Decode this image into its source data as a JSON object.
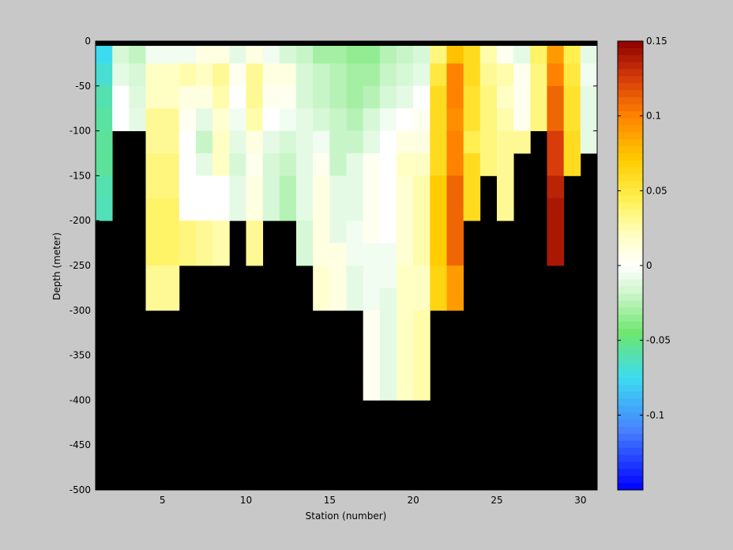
{
  "chart_data": {
    "type": "heatmap",
    "title": "",
    "xlabel": "Station (number)",
    "ylabel": "Depth (meter)",
    "xlim": [
      1,
      31
    ],
    "ylim": [
      -500,
      0
    ],
    "x_ticks": [
      5,
      10,
      15,
      20,
      25,
      30
    ],
    "x_tick_labels": [
      "5",
      "10",
      "15",
      "20",
      "25",
      "30"
    ],
    "y_ticks": [
      0,
      -50,
      -100,
      -150,
      -200,
      -250,
      -300,
      -350,
      -400,
      -450,
      -500
    ],
    "y_tick_labels": [
      "0",
      "-50",
      "-100",
      "-150",
      "-200",
      "-250",
      "-300",
      "-350",
      "-400",
      "-450",
      "-500"
    ],
    "colorbar": {
      "range": [
        -0.15,
        0.15
      ],
      "ticks": [
        0.15,
        0.1,
        0.05,
        0,
        -0.05,
        -0.1
      ],
      "tick_labels": [
        "0.15",
        "0.1",
        "0.05",
        "0",
        "-0.05",
        "-0.1"
      ]
    },
    "background_color": "#000000",
    "station_width": 1,
    "depth_bin": 25,
    "stations": [
      {
        "x": 1,
        "bottom": -200,
        "v": [
          -0.075,
          -0.068,
          -0.06,
          -0.057,
          -0.055,
          -0.055,
          -0.06,
          -0.062
        ]
      },
      {
        "x": 2,
        "bottom": -100,
        "v": [
          -0.015,
          -0.01,
          0,
          0
        ]
      },
      {
        "x": 3,
        "bottom": -100,
        "v": [
          -0.022,
          -0.015,
          -0.012,
          -0.01
        ]
      },
      {
        "x": 4,
        "bottom": -300,
        "v": [
          -0.005,
          0.02,
          0.02,
          0.03,
          0.03,
          0.035,
          0.035,
          0.04,
          0.04,
          0.04,
          0.03,
          0.03
        ]
      },
      {
        "x": 5,
        "bottom": -300,
        "v": [
          -0.005,
          0.02,
          0.02,
          0.03,
          0.03,
          0.035,
          0.035,
          0.04,
          0.04,
          0.04,
          0.03,
          0.03
        ]
      },
      {
        "x": 6,
        "bottom": -250,
        "v": [
          -0.005,
          0.025,
          0.01,
          0.005,
          0,
          0,
          0,
          0,
          0.035,
          0.035
        ]
      },
      {
        "x": 7,
        "bottom": -250,
        "v": [
          0.01,
          0.02,
          0.01,
          -0.01,
          -0.02,
          -0.01,
          0,
          0,
          0.03,
          0.03
        ]
      },
      {
        "x": 8,
        "bottom": -250,
        "v": [
          0.01,
          0.03,
          0.025,
          0.015,
          0.02,
          0.02,
          0,
          0,
          0.025,
          0.025
        ]
      },
      {
        "x": 9,
        "bottom": -200,
        "v": [
          -0.01,
          0.005,
          0,
          -0.005,
          -0.01,
          -0.015,
          -0.01,
          -0.01
        ]
      },
      {
        "x": 10,
        "bottom": -250,
        "v": [
          0.01,
          0.03,
          0.03,
          0.025,
          0.01,
          0.005,
          0.01,
          0.01,
          0.03,
          0.03
        ]
      },
      {
        "x": 11,
        "bottom": -200,
        "v": [
          -0.005,
          0.01,
          0.005,
          0,
          -0.01,
          -0.015,
          -0.015,
          -0.015
        ]
      },
      {
        "x": 12,
        "bottom": -200,
        "v": [
          -0.015,
          0.01,
          0.005,
          -0.005,
          -0.015,
          -0.02,
          -0.025,
          -0.025
        ]
      },
      {
        "x": 13,
        "bottom": -250,
        "v": [
          -0.02,
          -0.015,
          -0.015,
          -0.01,
          -0.01,
          -0.01,
          -0.01,
          -0.01,
          -0.015,
          -0.015
        ]
      },
      {
        "x": 14,
        "bottom": -300,
        "v": [
          -0.03,
          -0.02,
          -0.02,
          -0.015,
          -0.005,
          0.005,
          0.01,
          0.01,
          0.01,
          0.01,
          0.015,
          0.015
        ]
      },
      {
        "x": 15,
        "bottom": -300,
        "v": [
          -0.03,
          -0.025,
          -0.025,
          -0.02,
          -0.02,
          -0.02,
          -0.01,
          -0.01,
          -0.01,
          0.01,
          0.01,
          0.01
        ]
      },
      {
        "x": 16,
        "bottom": -300,
        "v": [
          -0.035,
          -0.03,
          -0.03,
          -0.025,
          -0.02,
          -0.01,
          -0.01,
          -0.01,
          -0.005,
          -0.005,
          -0.01,
          -0.01
        ]
      },
      {
        "x": 17,
        "bottom": -400,
        "v": [
          -0.035,
          -0.03,
          -0.025,
          -0.015,
          -0.01,
          0.005,
          0.005,
          0.005,
          0.005,
          -0.005,
          -0.005,
          -0.005,
          0.005,
          0.005,
          0.005,
          0.005
        ]
      },
      {
        "x": 18,
        "bottom": -400,
        "v": [
          -0.025,
          -0.02,
          -0.015,
          -0.005,
          0,
          0,
          0,
          0,
          0,
          -0.005,
          -0.005,
          -0.01,
          -0.01,
          -0.01,
          -0.01,
          -0.01
        ]
      },
      {
        "x": 19,
        "bottom": -400,
        "v": [
          -0.02,
          -0.015,
          -0.01,
          0,
          0.01,
          0.02,
          0.015,
          0.015,
          0.015,
          0.015,
          0.02,
          0.02,
          0.02,
          0.02,
          0.02,
          0.02
        ]
      },
      {
        "x": 20,
        "bottom": -400,
        "v": [
          -0.015,
          -0.01,
          0,
          0.005,
          0.01,
          0.02,
          0.025,
          0.025,
          0.025,
          0.025,
          0.02,
          0.02,
          0.025,
          0.025,
          0.025,
          0.025
        ]
      },
      {
        "x": 21,
        "bottom": -300,
        "v": [
          0.035,
          0.05,
          0.06,
          0.06,
          0.06,
          0.06,
          0.07,
          0.07,
          0.07,
          0.07,
          0.065,
          0.065
        ]
      },
      {
        "x": 22,
        "bottom": -300,
        "v": [
          0.075,
          0.1,
          0.1,
          0.095,
          0.1,
          0.1,
          0.11,
          0.11,
          0.11,
          0.11,
          0.09,
          0.09
        ]
      },
      {
        "x": 23,
        "bottom": -200,
        "v": [
          0.06,
          0.06,
          0.055,
          0.055,
          0.045,
          0.06,
          0.06,
          0.06
        ]
      },
      {
        "x": 24,
        "bottom": -150,
        "v": [
          0.025,
          0.03,
          0.035,
          0.035,
          0.035,
          0.035
        ]
      },
      {
        "x": 25,
        "bottom": -200,
        "v": [
          0.005,
          0.025,
          0.02,
          0.025,
          0.03,
          0.03,
          0.03,
          0.03
        ]
      },
      {
        "x": 26,
        "bottom": -125,
        "v": [
          -0.01,
          0.005,
          0.005,
          0.005,
          0.03
        ]
      },
      {
        "x": 27,
        "bottom": -100,
        "v": [
          0.04,
          0.035,
          0.035,
          0.035
        ]
      },
      {
        "x": 28,
        "bottom": -250,
        "v": [
          0.09,
          0.1,
          0.11,
          0.11,
          0.125,
          0.125,
          0.135,
          0.14,
          0.14,
          0.14
        ]
      },
      {
        "x": 29,
        "bottom": -150,
        "v": [
          0.045,
          0.05,
          0.055,
          0.055,
          0.06,
          0.06
        ]
      },
      {
        "x": 30,
        "bottom": -125,
        "v": [
          -0.01,
          -0.005,
          -0.01,
          -0.01,
          -0.01
        ]
      }
    ]
  }
}
